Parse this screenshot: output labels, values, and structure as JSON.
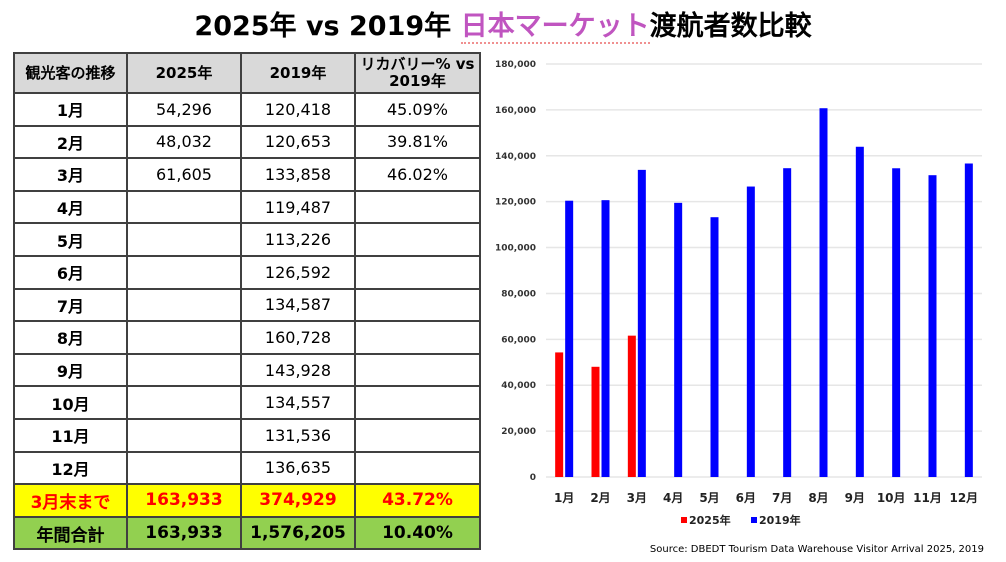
{
  "title": {
    "part1": "2025年 vs 2019年 ",
    "highlight": "日本マーケット",
    "part2": "渡航者数比較"
  },
  "colors": {
    "highlight": "#c055c0",
    "series_2025": "#ff0000",
    "series_2019": "#0000ff",
    "ytd_bg": "#ffff00",
    "total_bg": "#92d050"
  },
  "table": {
    "headers": [
      "観光客の推移",
      "2025年",
      "2019年",
      "リカバリー% vs 2019年"
    ],
    "rows": [
      {
        "month": "1月",
        "y2025": "54,296",
        "y2019": "120,418",
        "recovery": "45.09%"
      },
      {
        "month": "2月",
        "y2025": "48,032",
        "y2019": "120,653",
        "recovery": "39.81%"
      },
      {
        "month": "3月",
        "y2025": "61,605",
        "y2019": "133,858",
        "recovery": "46.02%"
      },
      {
        "month": "4月",
        "y2025": "",
        "y2019": "119,487",
        "recovery": ""
      },
      {
        "month": "5月",
        "y2025": "",
        "y2019": "113,226",
        "recovery": ""
      },
      {
        "month": "6月",
        "y2025": "",
        "y2019": "126,592",
        "recovery": ""
      },
      {
        "month": "7月",
        "y2025": "",
        "y2019": "134,587",
        "recovery": ""
      },
      {
        "month": "8月",
        "y2025": "",
        "y2019": "160,728",
        "recovery": ""
      },
      {
        "month": "9月",
        "y2025": "",
        "y2019": "143,928",
        "recovery": ""
      },
      {
        "month": "10月",
        "y2025": "",
        "y2019": "134,557",
        "recovery": ""
      },
      {
        "month": "11月",
        "y2025": "",
        "y2019": "131,536",
        "recovery": ""
      },
      {
        "month": "12月",
        "y2025": "",
        "y2019": "136,635",
        "recovery": ""
      }
    ],
    "ytd": {
      "label": "3月末まで",
      "y2025": "163,933",
      "y2019": "374,929",
      "recovery": "43.72%"
    },
    "total": {
      "label": "年間合計",
      "y2025": "163,933",
      "y2019": "1,576,205",
      "recovery": "10.40%"
    }
  },
  "chart_data": {
    "type": "bar",
    "title": "",
    "xlabel": "",
    "ylabel": "",
    "categories": [
      "1月",
      "2月",
      "3月",
      "4月",
      "5月",
      "6月",
      "7月",
      "8月",
      "9月",
      "10月",
      "11月",
      "12月"
    ],
    "series": [
      {
        "name": "2025年",
        "color": "#ff0000",
        "values": [
          54296,
          48032,
          61605,
          null,
          null,
          null,
          null,
          null,
          null,
          null,
          null,
          null
        ]
      },
      {
        "name": "2019年",
        "color": "#0000ff",
        "values": [
          120418,
          120653,
          133858,
          119487,
          113226,
          126592,
          134587,
          160728,
          143928,
          134557,
          131536,
          136635
        ]
      }
    ],
    "ylim": [
      0,
      180000
    ],
    "yticks": [
      0,
      20000,
      40000,
      60000,
      80000,
      100000,
      120000,
      140000,
      160000,
      180000
    ],
    "ytick_labels": [
      "0",
      "20,000",
      "40,000",
      "60,000",
      "80,000",
      "100,000",
      "120,000",
      "140,000",
      "160,000",
      "180,000"
    ],
    "grid": true,
    "legend": "bottom-center"
  },
  "source": "Source: DBEDT Tourism Data Warehouse Visitor Arrival 2025, 2019"
}
